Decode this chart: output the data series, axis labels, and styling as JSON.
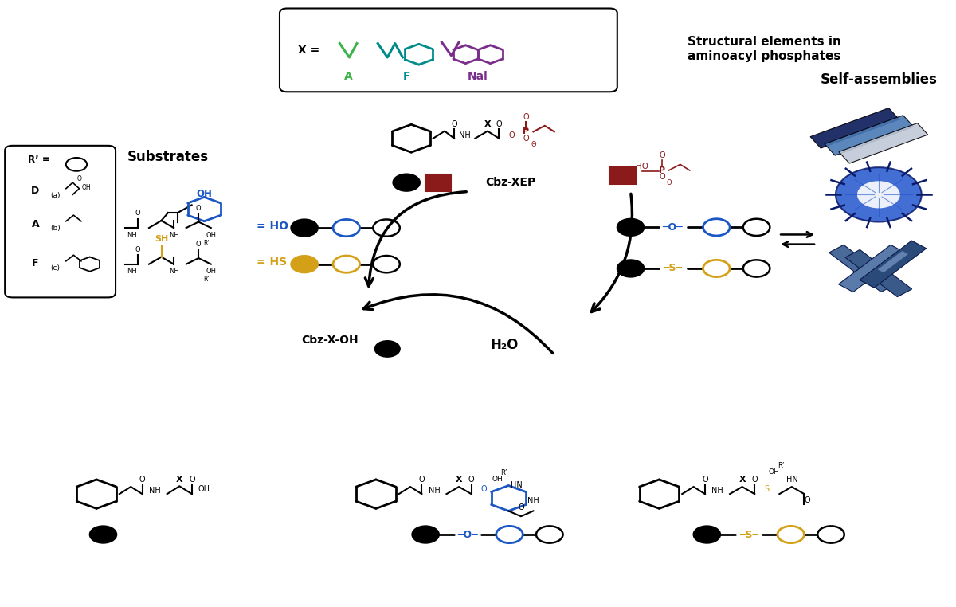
{
  "bg_color": "#ffffff",
  "figure_width": 12.0,
  "figure_height": 7.62,
  "dpi": 100,
  "colors": {
    "black": "#000000",
    "dark_red": "#8b1a1a",
    "blue": "#1a56c4",
    "gold": "#d4a017",
    "green": "#3cb34a",
    "teal": "#008b8b",
    "purple": "#7b2d8b",
    "dark_blue": "#0a1a6a",
    "mid_blue": "#4a7ab5",
    "light_gray": "#c0c0c0",
    "white": "#ffffff"
  },
  "labels": {
    "structural_elements": "Structural elements in\naminoacyl phosphates",
    "self_assemblies": "Self-assemblies",
    "substrates": "Substrates",
    "cbz_xep": "Cbz-XEP",
    "cbz_xoh": "Cbz-X-OH",
    "h2o": "H₂O",
    "ho": "HO",
    "hs": "HS",
    "rp": "R’ =",
    "D": "D",
    "A": "A",
    "F": "F",
    "a_sub": "(a)",
    "b_sub": "(b)",
    "c_sub": "(c)",
    "X_label": "X =",
    "A_label": "A",
    "F_label": "F",
    "Nal_label": "Nal"
  }
}
